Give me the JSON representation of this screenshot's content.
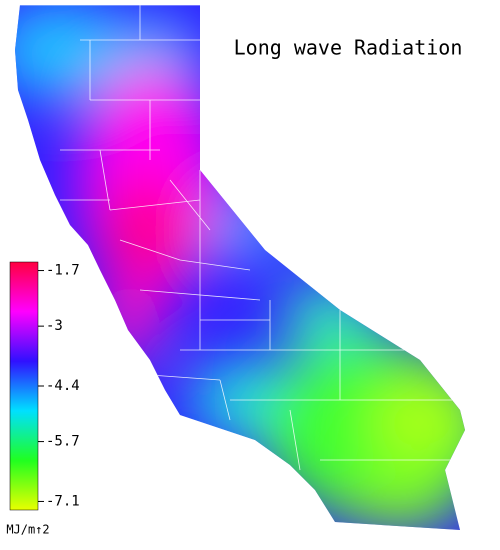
{
  "title": "Long wave Radiation",
  "colorbar": {
    "label": "MJ/m↑2",
    "clim": [
      -1.5,
      -7.3
    ],
    "ticks": [
      -1.7,
      -3.0,
      -4.4,
      -5.7,
      -7.1
    ],
    "colors": [
      "#ff0040",
      "#ff00ff",
      "#3010ff",
      "#00e0ff",
      "#20ff20",
      "#e8ff00"
    ]
  }
}
